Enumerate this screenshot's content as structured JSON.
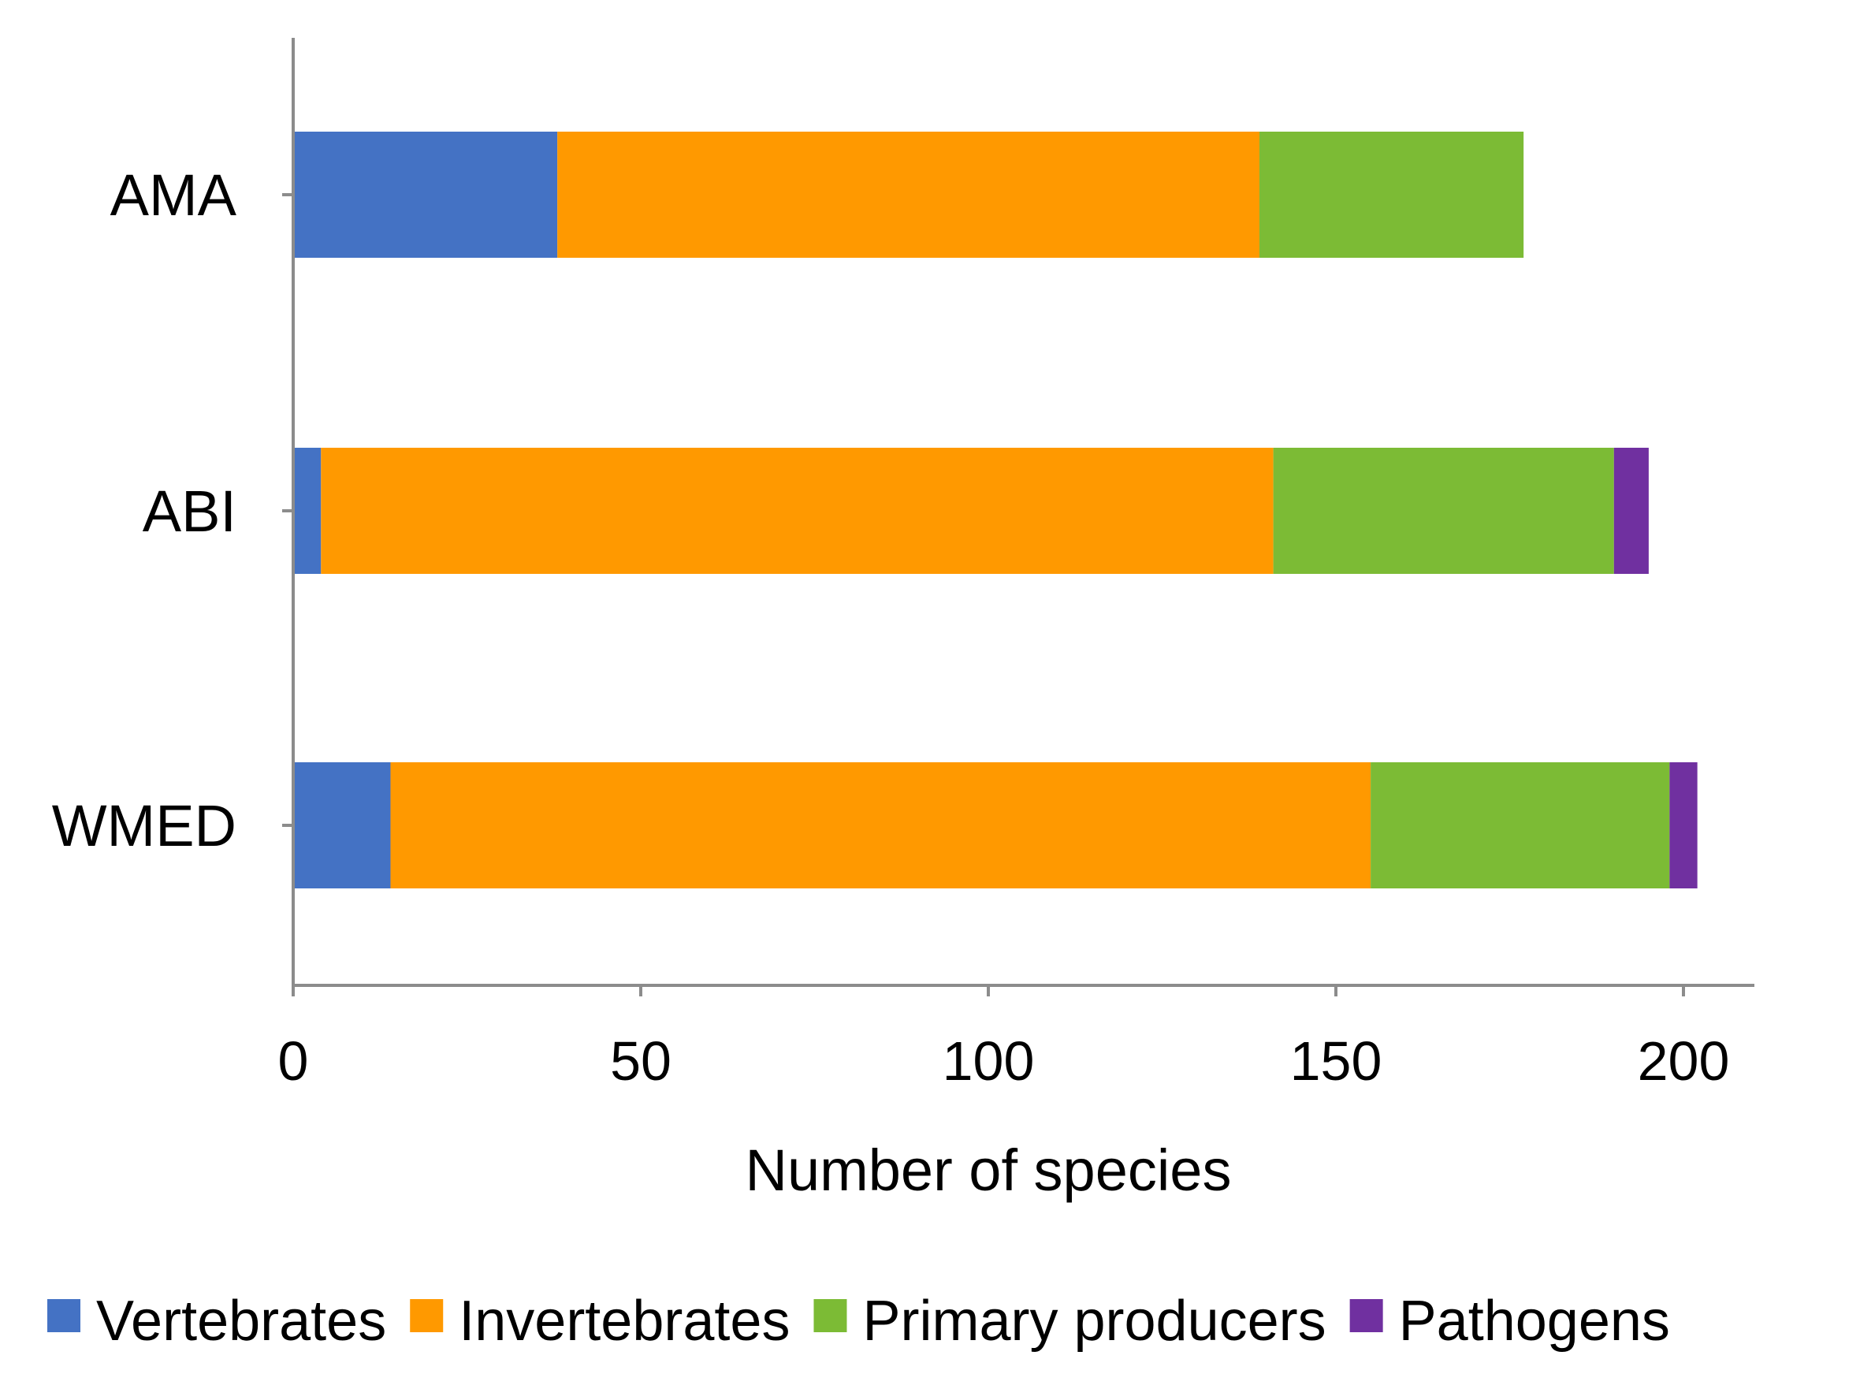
{
  "chart_data": {
    "type": "bar",
    "orientation": "horizontal",
    "stacked": true,
    "categories": [
      "AMA",
      "ABI",
      "WMED"
    ],
    "series": [
      {
        "name": "Vertebrates",
        "color": "#4472c4",
        "values": [
          38,
          4,
          14
        ]
      },
      {
        "name": "Invertebrates",
        "color": "#ff9900",
        "values": [
          101,
          137,
          141
        ]
      },
      {
        "name": "Primary producers",
        "color": "#7cbb35",
        "values": [
          38,
          49,
          43
        ]
      },
      {
        "name": "Pathogens",
        "color": "#7030a0",
        "values": [
          0,
          5,
          4
        ]
      }
    ],
    "title": "",
    "xlabel": "Number of species",
    "ylabel": "",
    "xlim": [
      0,
      210
    ],
    "xticks": [
      0,
      50,
      100,
      150,
      200
    ],
    "xtick_labels": [
      "0",
      "50",
      "100",
      "150",
      "200"
    ],
    "grid": false,
    "legend_position": "bottom"
  }
}
